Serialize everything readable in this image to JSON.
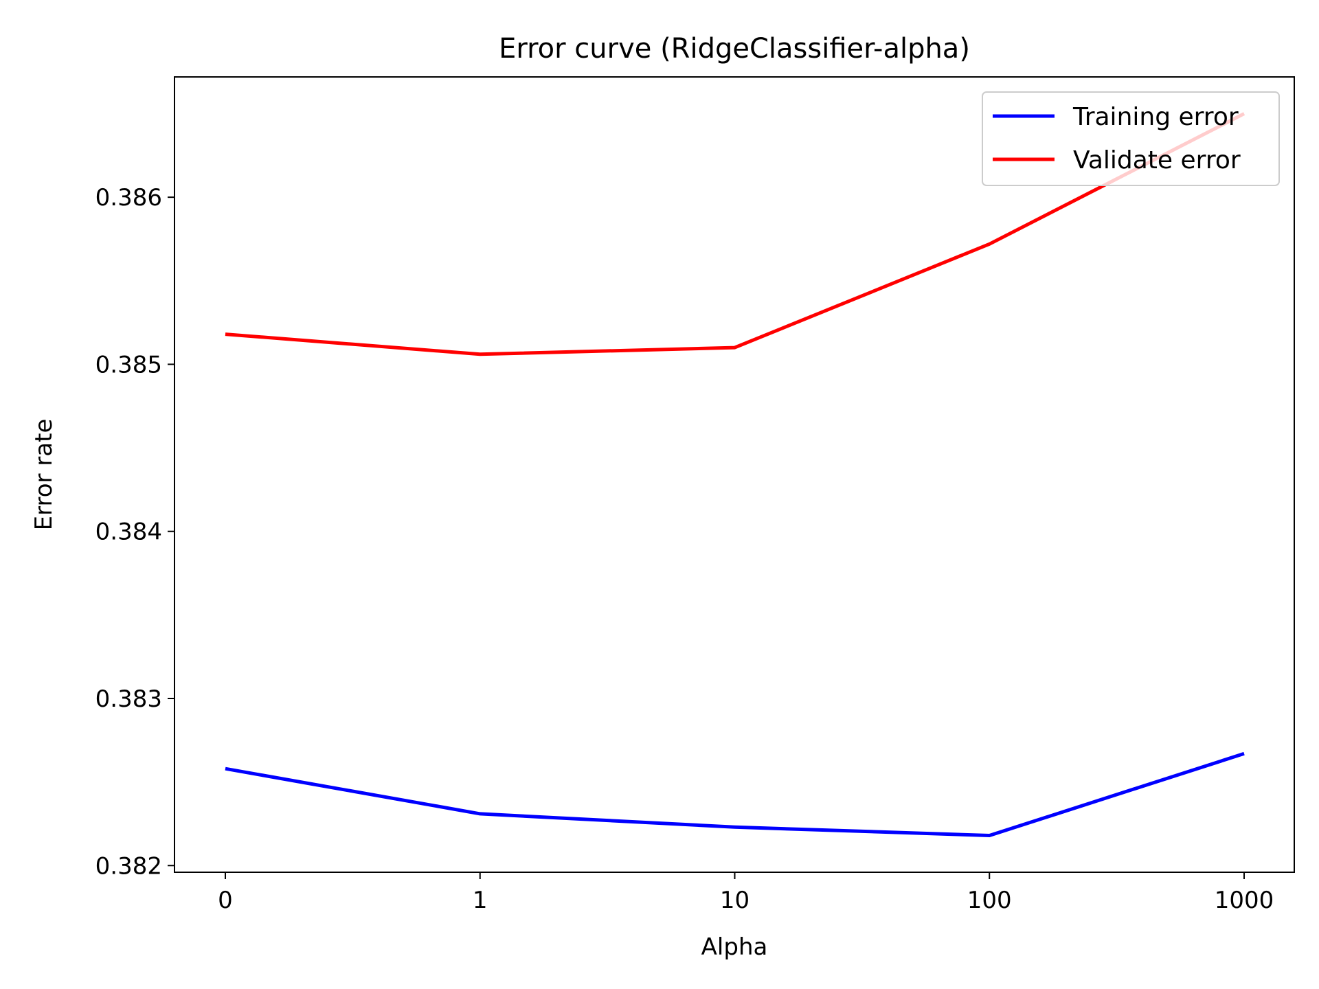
{
  "chart_data": {
    "type": "line",
    "title": "Error curve (RidgeClassifier-alpha)",
    "xlabel": "Alpha",
    "ylabel": "Error rate",
    "categories": [
      "0",
      "1",
      "10",
      "100",
      "1000"
    ],
    "series": [
      {
        "name": "Training error",
        "color": "#0000ff",
        "values": [
          0.38258,
          0.38231,
          0.38223,
          0.38218,
          0.38267
        ]
      },
      {
        "name": "Validate error",
        "color": "#ff0000",
        "values": [
          0.38518,
          0.38506,
          0.3851,
          0.38572,
          0.3865
        ]
      }
    ],
    "ylim": [
      0.38196,
      0.38672
    ],
    "yticks": [
      "0.382",
      "0.383",
      "0.384",
      "0.385",
      "0.386"
    ],
    "grid": false,
    "legend_position": "top-right"
  }
}
